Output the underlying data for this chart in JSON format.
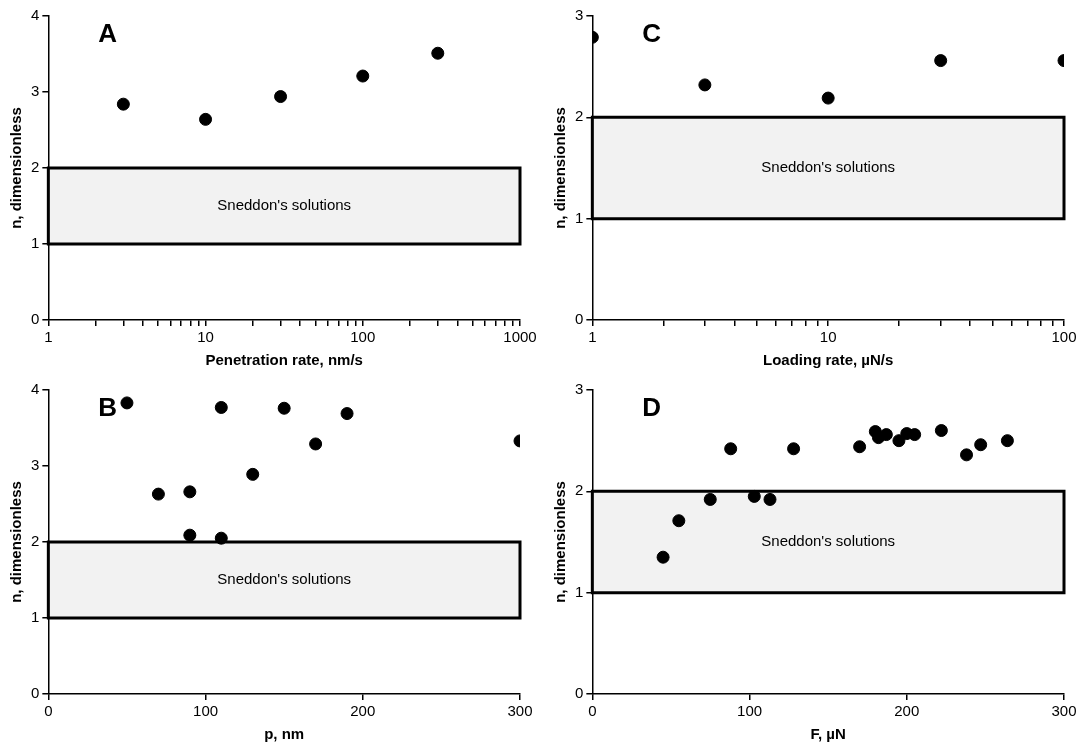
{
  "chart_data": [
    {
      "type": "scatter",
      "title": "A",
      "xlabel": "Penetration rate, nm/s",
      "ylabel": "n, dimensionless",
      "log": "x",
      "marker": "circle",
      "grid": false,
      "legend": false,
      "x": [
        3,
        10,
        30,
        100,
        300
      ],
      "series": [
        {
          "color": "#000000",
          "values": [
            2.84,
            2.64,
            2.94,
            3.21,
            3.51
          ]
        }
      ],
      "xlim": [
        1,
        1000
      ],
      "xticks": [
        1,
        {
          "value": 2,
          "label": null
        },
        {
          "value": 3,
          "label": null
        },
        {
          "value": 4,
          "label": null
        },
        {
          "value": 5,
          "label": null
        },
        {
          "value": 6,
          "label": null
        },
        {
          "value": 7,
          "label": null
        },
        {
          "value": 8,
          "label": null
        },
        {
          "value": 9,
          "label": null
        },
        10,
        {
          "value": 20,
          "label": null
        },
        {
          "value": 30,
          "label": null
        },
        {
          "value": 40,
          "label": null
        },
        {
          "value": 50,
          "label": null
        },
        {
          "value": 60,
          "label": null
        },
        {
          "value": 70,
          "label": null
        },
        {
          "value": 80,
          "label": null
        },
        {
          "value": 90,
          "label": null
        },
        100,
        {
          "value": 200,
          "label": null
        },
        {
          "value": 300,
          "label": null
        },
        {
          "value": 400,
          "label": null
        },
        {
          "value": 500,
          "label": null
        },
        {
          "value": 600,
          "label": null
        },
        {
          "value": 700,
          "label": null
        },
        {
          "value": 800,
          "label": null
        },
        {
          "value": 900,
          "label": null
        },
        1000
      ],
      "ylim": [
        0,
        4
      ],
      "yticks": [
        0,
        1,
        2,
        3,
        4
      ],
      "bands": [
        {
          "axis": "y",
          "from": 1,
          "to": 2,
          "label": "Sneddon's solutions",
          "color": "#f2f2f2"
        }
      ]
    },
    {
      "type": "scatter",
      "title": "C",
      "xlabel": "Loading rate, µN/s",
      "ylabel": "n, dimensionless",
      "log": "x",
      "marker": "circle",
      "grid": false,
      "legend": false,
      "x": [
        1,
        3,
        10,
        30,
        100
      ],
      "series": [
        {
          "color": "#000000",
          "values": [
            2.79,
            2.32,
            2.19,
            2.56,
            2.56
          ]
        }
      ],
      "xlim": [
        1,
        100
      ],
      "xticks": [
        1,
        {
          "value": 2,
          "label": null
        },
        {
          "value": 3,
          "label": null
        },
        {
          "value": 4,
          "label": null
        },
        {
          "value": 5,
          "label": null
        },
        {
          "value": 6,
          "label": null
        },
        {
          "value": 7,
          "label": null
        },
        {
          "value": 8,
          "label": null
        },
        {
          "value": 9,
          "label": null
        },
        10,
        {
          "value": 20,
          "label": null
        },
        {
          "value": 30,
          "label": null
        },
        {
          "value": 40,
          "label": null
        },
        {
          "value": 50,
          "label": null
        },
        {
          "value": 60,
          "label": null
        },
        {
          "value": 70,
          "label": null
        },
        {
          "value": 80,
          "label": null
        },
        {
          "value": 90,
          "label": null
        },
        100
      ],
      "ylim": [
        0,
        3
      ],
      "yticks": [
        0,
        1,
        2,
        3
      ],
      "bands": [
        {
          "axis": "y",
          "from": 1,
          "to": 2,
          "label": "Sneddon's solutions",
          "color": "#f2f2f2"
        }
      ]
    },
    {
      "type": "scatter",
      "title": "B",
      "xlabel": "p, nm",
      "ylabel": "n, dimensionless",
      "marker": "circle",
      "grid": false,
      "legend": false,
      "x": [
        50,
        70,
        90,
        90,
        110,
        110,
        130,
        150,
        170,
        190,
        300
      ],
      "series": [
        {
          "color": "#000000",
          "values": [
            3.83,
            2.63,
            2.66,
            2.09,
            3.77,
            2.05,
            2.89,
            3.76,
            3.29,
            3.69,
            3.33
          ]
        }
      ],
      "xlim": [
        0,
        300
      ],
      "xticks": [
        0,
        100,
        200,
        300
      ],
      "ylim": [
        0,
        4
      ],
      "yticks": [
        0,
        1,
        2,
        3,
        4
      ],
      "bands": [
        {
          "axis": "y",
          "from": 1,
          "to": 2,
          "label": "Sneddon's solutions",
          "color": "#f2f2f2"
        }
      ]
    },
    {
      "type": "scatter",
      "title": "D",
      "xlabel": "F, µN",
      "ylabel": "n, dimensionless",
      "marker": "circle",
      "grid": false,
      "legend": false,
      "x": [
        45,
        55,
        75,
        88,
        103,
        113,
        128,
        170,
        180,
        182,
        187,
        195,
        200,
        205,
        222,
        238,
        247,
        264
      ],
      "series": [
        {
          "color": "#000000",
          "values": [
            1.35,
            1.71,
            1.92,
            2.42,
            1.95,
            1.92,
            2.42,
            2.44,
            2.59,
            2.53,
            2.56,
            2.5,
            2.57,
            2.56,
            2.6,
            2.36,
            2.46,
            2.5
          ]
        }
      ],
      "xlim": [
        0,
        300
      ],
      "xticks": [
        0,
        100,
        200,
        300
      ],
      "ylim": [
        0,
        3
      ],
      "yticks": [
        0,
        1,
        2,
        3
      ],
      "bands": [
        {
          "axis": "y",
          "from": 1,
          "to": 2,
          "label": "Sneddon's solutions",
          "color": "#f2f2f2"
        }
      ]
    }
  ]
}
